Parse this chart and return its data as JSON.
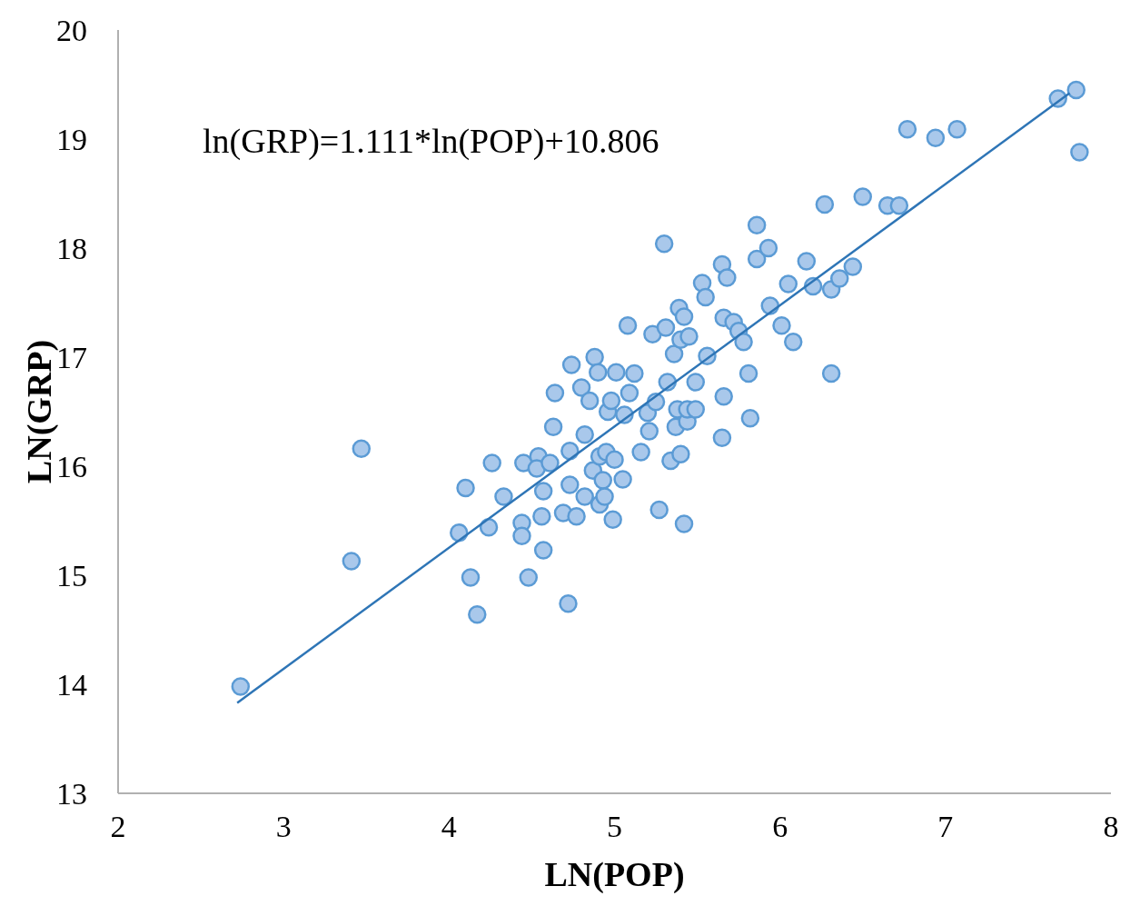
{
  "chart_data": {
    "type": "scatter",
    "xlabel": "LN(POP)",
    "ylabel": "LN(GRP)",
    "xlim": [
      2,
      8
    ],
    "ylim": [
      13,
      20
    ],
    "xticks": [
      2,
      3,
      4,
      5,
      6,
      7,
      8
    ],
    "yticks": [
      13,
      14,
      15,
      16,
      17,
      18,
      19,
      20
    ],
    "grid": false,
    "marker": "circle",
    "annotations": [
      "ln(GRP)=1.111*ln(POP)+10.806"
    ],
    "series": [
      {
        "type": "scatter",
        "color": "#5b9bd5",
        "x": [
          2.74,
          3.41,
          3.47,
          4.06,
          4.1,
          4.13,
          4.17,
          4.24,
          4.26,
          4.33,
          4.44,
          4.44,
          4.45,
          4.48,
          4.54,
          4.53,
          4.57,
          4.56,
          4.57,
          4.61,
          4.63,
          4.64,
          4.69,
          4.72,
          4.73,
          4.73,
          4.74,
          4.77,
          4.8,
          4.82,
          4.82,
          4.85,
          4.88,
          4.87,
          4.9,
          4.91,
          4.91,
          4.93,
          4.94,
          4.95,
          4.96,
          4.98,
          4.99,
          5.0,
          5.01,
          5.05,
          5.06,
          5.08,
          5.09,
          5.12,
          5.16,
          5.21,
          5.2,
          5.23,
          5.25,
          5.27,
          5.3,
          5.31,
          5.32,
          5.34,
          5.36,
          5.37,
          5.38,
          5.39,
          5.4,
          5.4,
          5.42,
          5.44,
          5.45,
          5.42,
          5.44,
          5.49,
          5.49,
          5.53,
          5.55,
          5.56,
          5.65,
          5.66,
          5.66,
          5.65,
          5.68,
          5.72,
          5.75,
          5.78,
          5.81,
          5.82,
          5.86,
          5.86,
          5.93,
          5.94,
          6.01,
          6.05,
          6.08,
          6.16,
          6.2,
          6.27,
          6.31,
          6.36,
          6.31,
          6.44,
          6.5,
          6.65,
          6.72,
          6.77,
          6.94,
          7.07,
          7.68,
          7.79,
          7.81
        ],
        "values": [
          13.98,
          15.13,
          16.16,
          15.39,
          15.8,
          14.98,
          14.64,
          15.44,
          16.03,
          15.72,
          15.48,
          15.36,
          16.03,
          14.98,
          16.09,
          15.98,
          15.77,
          15.54,
          15.23,
          16.03,
          16.36,
          16.67,
          15.57,
          14.74,
          15.83,
          16.14,
          16.93,
          15.54,
          16.72,
          16.29,
          15.72,
          16.6,
          17.0,
          15.96,
          16.86,
          15.65,
          16.09,
          15.87,
          15.72,
          16.13,
          16.5,
          16.6,
          15.51,
          16.06,
          16.86,
          15.88,
          16.47,
          17.29,
          16.67,
          16.85,
          16.13,
          16.32,
          16.49,
          17.21,
          16.59,
          15.6,
          18.04,
          17.27,
          16.77,
          16.05,
          17.03,
          16.36,
          16.52,
          17.45,
          16.11,
          17.16,
          17.37,
          16.41,
          17.19,
          15.47,
          16.52,
          16.77,
          16.52,
          17.68,
          17.55,
          17.01,
          17.85,
          17.36,
          16.64,
          16.26,
          17.73,
          17.32,
          17.24,
          17.14,
          16.85,
          16.44,
          18.21,
          17.9,
          18.0,
          17.47,
          17.29,
          17.67,
          17.14,
          17.88,
          17.65,
          18.4,
          17.62,
          17.72,
          16.85,
          17.83,
          18.47,
          18.39,
          18.39,
          19.09,
          19.01,
          19.09,
          19.37,
          19.45,
          18.88
        ]
      },
      {
        "type": "line",
        "color": "#2e75b6",
        "marker": "none",
        "x": [
          2.72,
          7.75
        ],
        "values": [
          13.83,
          19.42
        ]
      }
    ]
  }
}
